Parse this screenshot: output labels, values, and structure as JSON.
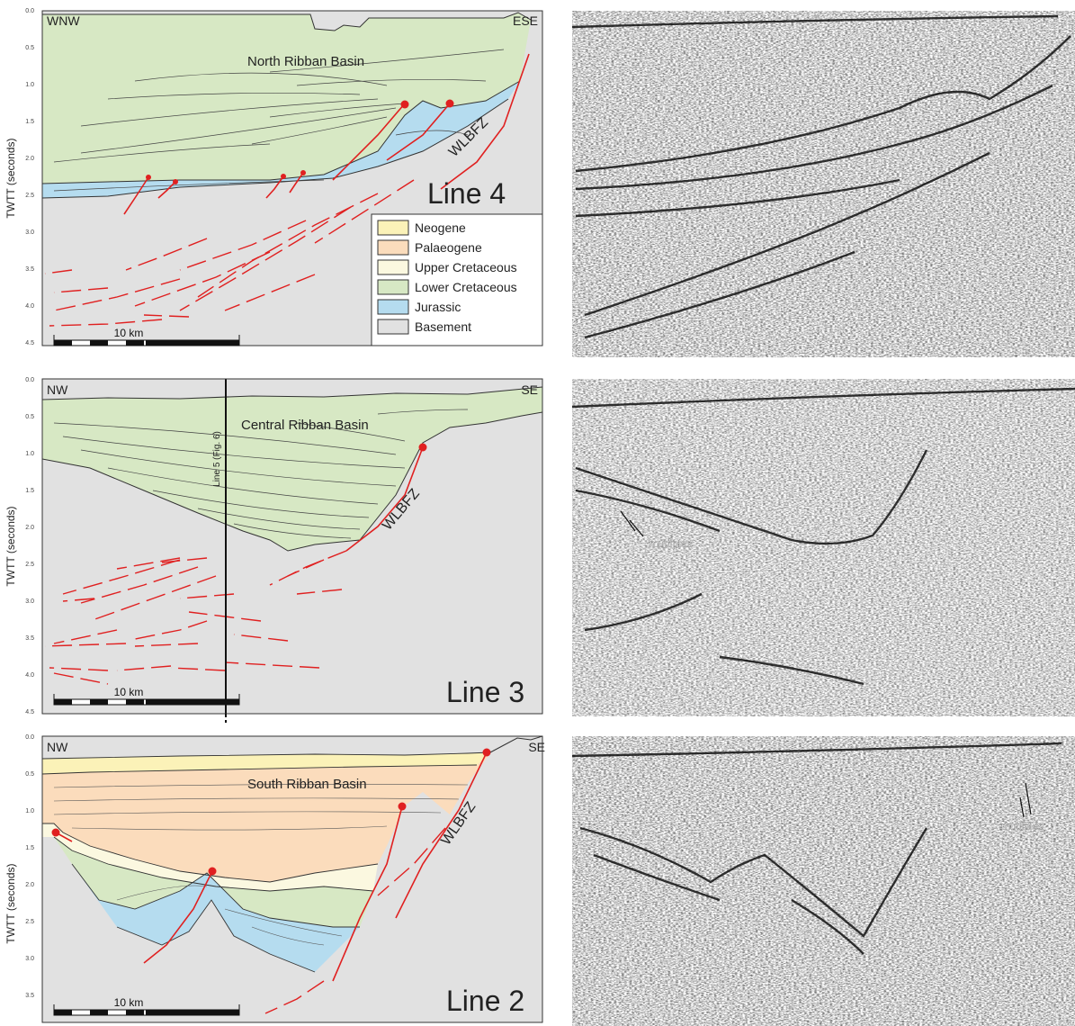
{
  "panels": [
    {
      "id": "line4",
      "line_label": "Line 4",
      "basin_label": "North Ribban Basin",
      "dir_left": "WNW",
      "dir_right": "ESE",
      "fault_zone_label": "WLBFZ",
      "y_axis_title": "TWTT (seconds)",
      "y_ticks": [
        "0.0",
        "0.5",
        "1.0",
        "1.5",
        "2.0",
        "2.5",
        "3.0",
        "3.5",
        "4.0",
        "4.5"
      ],
      "scale_label": "10 km"
    },
    {
      "id": "line3",
      "line_label": "Line 3",
      "basin_label": "Central Ribban Basin",
      "dir_left": "NW",
      "dir_right": "SE",
      "fault_zone_label": "WLBFZ",
      "crossline_label": "Line 5 (Fig. 6)",
      "y_axis_title": "TWTT (seconds)",
      "y_ticks": [
        "0.0",
        "0.5",
        "1.0",
        "1.5",
        "2.0",
        "2.5",
        "3.0",
        "3.5",
        "4.0",
        "4.5"
      ],
      "scale_label": "10 km",
      "seismic_annotation": "multiples"
    },
    {
      "id": "line2",
      "line_label": "Line 2",
      "basin_label": "South Ribban Basin",
      "dir_left": "NW",
      "dir_right": "SE",
      "fault_zone_label": "WLBFZ",
      "y_axis_title": "TWTT (seconds)",
      "y_ticks": [
        "0.0",
        "0.5",
        "1.0",
        "1.5",
        "2.0",
        "2.5",
        "3.0",
        "3.5"
      ],
      "scale_label": "10 km",
      "seismic_annotation": "multiples"
    }
  ],
  "legend": [
    {
      "label": "Neogene",
      "color": "#fbf2b8"
    },
    {
      "label": "Palaeogene",
      "color": "#fbdcbc"
    },
    {
      "label": "Upper Cretaceous",
      "color": "#fbf8e0"
    },
    {
      "label": "Lower Cretaceous",
      "color": "#d7e8c4"
    },
    {
      "label": "Jurassic",
      "color": "#b5dcef"
    },
    {
      "label": "Basement",
      "color": "#e1e1e1"
    }
  ],
  "colors": {
    "fault": "#e02020",
    "basement": "#e1e1e1",
    "lower_cretaceous": "#d7e8c4",
    "jurassic": "#b5dcef",
    "upper_cretaceous": "#fbf8e0",
    "palaeogene": "#fbdcbc",
    "neogene": "#fbf2b8"
  }
}
